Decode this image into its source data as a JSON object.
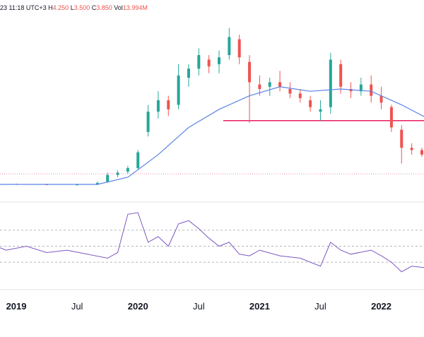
{
  "header": {
    "date_fragment": "23 11:18 UTC+3",
    "h_label": "H",
    "h_value": "4.250",
    "l_label": "L",
    "l_value": "3.500",
    "c_label": "C",
    "c_value": "3.850",
    "vol_label": "Vol",
    "vol_value": "13.994M"
  },
  "colors": {
    "up": "#26a69a",
    "down": "#ef5350",
    "ma": "#5b84e6",
    "rsi": "#7e57c2",
    "hline": "#e91e63",
    "grid_dash": "#9aa0a6"
  },
  "x_axis": {
    "ticks": [
      {
        "label": "2019",
        "bold": true
      },
      {
        "label": "Jul",
        "bold": false
      },
      {
        "label": "2020",
        "bold": true
      },
      {
        "label": "Jul",
        "bold": false
      },
      {
        "label": "2021",
        "bold": true
      },
      {
        "label": "Jul",
        "bold": false
      },
      {
        "label": "2022",
        "bold": true
      }
    ]
  },
  "chart_data": [
    {
      "type": "candlestick",
      "title": "",
      "x_range": [
        "2018-10",
        "2022-08"
      ],
      "y_range": [
        0,
        7.5
      ],
      "grid": false,
      "legend": "none",
      "ohlc_weekly_approx": [
        [
          "2018-10",
          0.3,
          0.35,
          0.25,
          0.3
        ],
        [
          "2019-01",
          0.3,
          0.32,
          0.26,
          0.28
        ],
        [
          "2019-04",
          0.28,
          0.3,
          0.25,
          0.27
        ],
        [
          "2019-07",
          0.27,
          0.29,
          0.25,
          0.27
        ],
        [
          "2019-09",
          0.27,
          0.4,
          0.25,
          0.35
        ],
        [
          "2019-10",
          0.4,
          0.8,
          0.35,
          0.7
        ],
        [
          "2019-11",
          0.7,
          0.9,
          0.6,
          0.8
        ],
        [
          "2019-12",
          0.85,
          1.1,
          0.75,
          1.0
        ],
        [
          "2020-01",
          1.0,
          1.8,
          0.95,
          1.7
        ],
        [
          "2020-02",
          2.6,
          3.8,
          2.4,
          3.5
        ],
        [
          "2020-03",
          3.5,
          4.4,
          3.2,
          4.0
        ],
        [
          "2020-04",
          4.0,
          4.2,
          3.3,
          3.6
        ],
        [
          "2020-05",
          3.8,
          5.6,
          3.6,
          5.1
        ],
        [
          "2020-06",
          5.0,
          5.6,
          4.6,
          5.4
        ],
        [
          "2020-07",
          5.4,
          6.3,
          5.1,
          6.0
        ],
        [
          "2020-08",
          5.8,
          6.0,
          5.2,
          5.5
        ],
        [
          "2020-09",
          5.6,
          6.2,
          5.2,
          5.9
        ],
        [
          "2020-10",
          6.0,
          7.2,
          5.8,
          6.8
        ],
        [
          "2020-11",
          6.7,
          6.9,
          5.6,
          5.9
        ],
        [
          "2020-12",
          5.7,
          6.0,
          3.0,
          4.8
        ],
        [
          "2021-01",
          4.7,
          5.1,
          4.2,
          4.5
        ],
        [
          "2021-02",
          4.6,
          5.0,
          4.2,
          4.8
        ],
        [
          "2021-03",
          4.8,
          5.3,
          4.4,
          4.6
        ],
        [
          "2021-04",
          4.5,
          4.8,
          4.1,
          4.3
        ],
        [
          "2021-05",
          4.3,
          4.5,
          3.9,
          4.1
        ],
        [
          "2021-06",
          4.0,
          4.2,
          3.5,
          3.7
        ],
        [
          "2021-07",
          3.5,
          4.0,
          3.1,
          3.6
        ],
        [
          "2021-08",
          3.7,
          6.1,
          3.4,
          5.8
        ],
        [
          "2021-09",
          5.6,
          5.8,
          4.3,
          4.6
        ],
        [
          "2021-10",
          4.5,
          4.8,
          4.1,
          4.4
        ],
        [
          "2021-11",
          4.4,
          5.0,
          4.2,
          4.7
        ],
        [
          "2021-12",
          4.7,
          5.1,
          3.9,
          4.2
        ],
        [
          "2022-01",
          4.2,
          4.6,
          3.6,
          3.9
        ],
        [
          "2022-02",
          3.7,
          3.8,
          2.6,
          2.8
        ],
        [
          "2022-03",
          2.7,
          2.9,
          1.2,
          1.9
        ],
        [
          "2022-04",
          1.9,
          2.1,
          1.6,
          1.8
        ],
        [
          "2022-05",
          1.8,
          1.9,
          1.5,
          1.6
        ],
        [
          "2022-06",
          1.6,
          1.7,
          1.4,
          1.5
        ]
      ],
      "moving_average_approx": [
        [
          "2018-10",
          0.28
        ],
        [
          "2019-09",
          0.28
        ],
        [
          "2019-12",
          0.6
        ],
        [
          "2020-03",
          1.6
        ],
        [
          "2020-06",
          2.8
        ],
        [
          "2020-09",
          3.6
        ],
        [
          "2020-12",
          4.2
        ],
        [
          "2021-03",
          4.6
        ],
        [
          "2021-06",
          4.4
        ],
        [
          "2021-09",
          4.5
        ],
        [
          "2021-12",
          4.4
        ],
        [
          "2022-03",
          3.8
        ],
        [
          "2022-06",
          3.1
        ]
      ],
      "horizontal_line": 3.1,
      "last_price_line": 0.75
    },
    {
      "type": "line",
      "title": "",
      "series": [
        {
          "values_approx": [
            [
              "2018-10",
              55
            ],
            [
              "2018-12",
              45
            ],
            [
              "2019-02",
              50
            ],
            [
              "2019-04",
              42
            ],
            [
              "2019-06",
              45
            ],
            [
              "2019-08",
              40
            ],
            [
              "2019-10",
              35
            ],
            [
              "2019-11",
              42
            ],
            [
              "2019-12",
              90
            ],
            [
              "2020-01",
              92
            ],
            [
              "2020-02",
              55
            ],
            [
              "2020-03",
              62
            ],
            [
              "2020-04",
              50
            ],
            [
              "2020-05",
              78
            ],
            [
              "2020-06",
              82
            ],
            [
              "2020-07",
              72
            ],
            [
              "2020-08",
              60
            ],
            [
              "2020-09",
              50
            ],
            [
              "2020-10",
              55
            ],
            [
              "2020-11",
              40
            ],
            [
              "2020-12",
              38
            ],
            [
              "2021-01",
              45
            ],
            [
              "2021-03",
              38
            ],
            [
              "2021-05",
              35
            ],
            [
              "2021-07",
              25
            ],
            [
              "2021-08",
              55
            ],
            [
              "2021-09",
              45
            ],
            [
              "2021-10",
              40
            ],
            [
              "2021-12",
              45
            ],
            [
              "2022-01",
              38
            ],
            [
              "2022-02",
              30
            ],
            [
              "2022-03",
              18
            ],
            [
              "2022-04",
              25
            ],
            [
              "2022-06",
              22
            ]
          ]
        }
      ],
      "y_range": [
        0,
        100
      ],
      "dashed_levels": [
        70,
        50,
        30
      ],
      "grid": false,
      "legend": "none"
    }
  ]
}
